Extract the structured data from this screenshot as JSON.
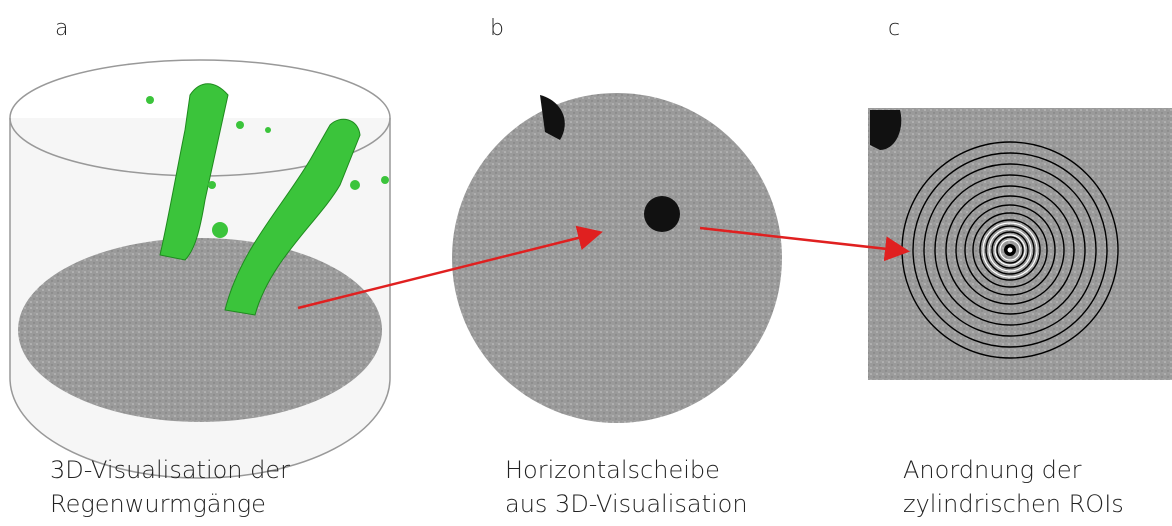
{
  "panels": [
    {
      "letter": "a",
      "caption_lines": [
        "3D-Visualisation der",
        "Regenwurmgänge"
      ]
    },
    {
      "letter": "b",
      "caption_lines": [
        "Horizontalscheibe",
        "aus 3D-Visualisation"
      ]
    },
    {
      "letter": "c",
      "caption_lines": [
        "Anordnung der",
        "zylindrischen ROIs"
      ]
    }
  ]
}
